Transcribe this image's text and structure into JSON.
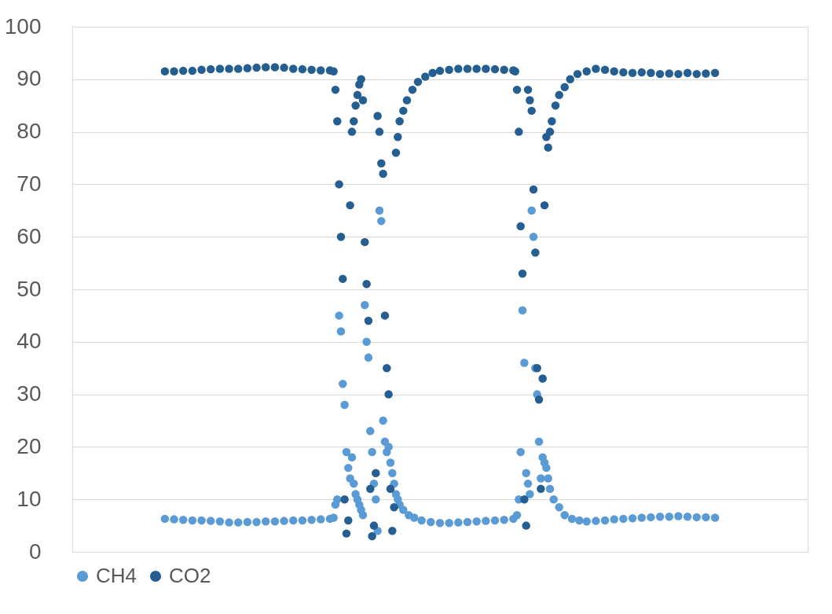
{
  "chart_data": {
    "type": "scatter",
    "categories": [
      null,
      null,
      null,
      null,
      null,
      null,
      null,
      null,
      null,
      null,
      null,
      null,
      null,
      null,
      null,
      null,
      null,
      null,
      null,
      null,
      null,
      null,
      null,
      null,
      null,
      null,
      null,
      null,
      null,
      null,
      null,
      null,
      null,
      null,
      null,
      null,
      null,
      null,
      null,
      null,
      null,
      null,
      null,
      null,
      null,
      null,
      null,
      null,
      null,
      null,
      null,
      null,
      null,
      null,
      null,
      null,
      null,
      null,
      null,
      null,
      null,
      null,
      null,
      null,
      null,
      null,
      null,
      null,
      null,
      null,
      null,
      null,
      null,
      null,
      null,
      null,
      null,
      null,
      null,
      null,
      null,
      null,
      null,
      null,
      null,
      null,
      null,
      null,
      null,
      null,
      null,
      null,
      null,
      null,
      null,
      null,
      null,
      null,
      null,
      null,
      null,
      null,
      null,
      null,
      null,
      null,
      null,
      null,
      null,
      null,
      null,
      null,
      null,
      null,
      null,
      null,
      null,
      null,
      null,
      null,
      null,
      null,
      null,
      null,
      null,
      null,
      null,
      null,
      null,
      null,
      null,
      null,
      null,
      null,
      null,
      null,
      null,
      null,
      null,
      null,
      null,
      null,
      null,
      null,
      null,
      null,
      null,
      null,
      null,
      null,
      null,
      null,
      null,
      null,
      null,
      null,
      null,
      null,
      null,
      null,
      null,
      null,
      null,
      null,
      null,
      null,
      null,
      null,
      null,
      null,
      null,
      null,
      null,
      null,
      null,
      null,
      null,
      null,
      null,
      null,
      null,
      null,
      null,
      null,
      null,
      null,
      null,
      null,
      null,
      null,
      null,
      null,
      null,
      null,
      null,
      null,
      null,
      null,
      null,
      null,
      null,
      null,
      null,
      null,
      null,
      null,
      null,
      null,
      null,
      null,
      null,
      null,
      null,
      null,
      null,
      null,
      null,
      null,
      null,
      null,
      null,
      null,
      null,
      null,
      null,
      null,
      null,
      null,
      null,
      null,
      null,
      null,
      null,
      null,
      null,
      null,
      null,
      null,
      null,
      null,
      null,
      null,
      null,
      null,
      null,
      null,
      null,
      null,
      null,
      null,
      null,
      null,
      null,
      null,
      null,
      null,
      null,
      null,
      null,
      null,
      null,
      null,
      null,
      null,
      null,
      null,
      null,
      null,
      null,
      null,
      null,
      null,
      null,
      null,
      null,
      null,
      null,
      null,
      null,
      null,
      null,
      null,
      null,
      null,
      null,
      null,
      null,
      null,
      null,
      null,
      null,
      null,
      null,
      null,
      null,
      null,
      null,
      null,
      null,
      null,
      null,
      null,
      null,
      null,
      null,
      null,
      null,
      null,
      null,
      null,
      null,
      null,
      null,
      null,
      null,
      null,
      null,
      null,
      null,
      null,
      null,
      null,
      null,
      null,
      null,
      null,
      null,
      null,
      null,
      null,
      null,
      null,
      null,
      null,
      null,
      null,
      null,
      null,
      null,
      null,
      null,
      null,
      null,
      null,
      null,
      null,
      null,
      null,
      null,
      null,
      null,
      null,
      null,
      null,
      null,
      null,
      null,
      null,
      null,
      null,
      null,
      null,
      null,
      null,
      null,
      null,
      null,
      null,
      null,
      null,
      null,
      null,
      null,
      null,
      null,
      null,
      null,
      null,
      null,
      null,
      null,
      null,
      null,
      null,
      null,
      null,
      null,
      null,
      null,
      null,
      null,
      null,
      null,
      null,
      null,
      null,
      null,
      null,
      null,
      null,
      null
    ],
    "ylim": [
      0,
      100
    ],
    "yticks": [
      0,
      10,
      20,
      30,
      40,
      50,
      60,
      70,
      80,
      90,
      100
    ],
    "grid": "y",
    "legend": "bottom",
    "marker": "circle",
    "series": [
      {
        "name": "CH4",
        "color": "#5b9bd5",
        "values": [
          null,
          null,
          null,
          null,
          null,
          null,
          null,
          null,
          null,
          null,
          null,
          null,
          null,
          null,
          null,
          null,
          null,
          null,
          null,
          null,
          null,
          null,
          null,
          null,
          null,
          null,
          null,
          null,
          null,
          null,
          null,
          null,
          null,
          null,
          null,
          null,
          null,
          null,
          null,
          null,
          null,
          null,
          null,
          null,
          null,
          null,
          null,
          null,
          null,
          null,
          6.3,
          null,
          null,
          null,
          null,
          6.2,
          null,
          null,
          null,
          null,
          6.1,
          null,
          null,
          null,
          null,
          6,
          null,
          null,
          null,
          null,
          6,
          null,
          null,
          null,
          null,
          5.9,
          null,
          null,
          null,
          null,
          5.8,
          null,
          null,
          null,
          null,
          5.6,
          null,
          null,
          null,
          null,
          5.6,
          null,
          null,
          null,
          null,
          5.7,
          null,
          null,
          null,
          null,
          5.7,
          null,
          null,
          null,
          null,
          5.8,
          null,
          null,
          null,
          null,
          5.8,
          null,
          null,
          null,
          null,
          5.9,
          null,
          null,
          null,
          null,
          6,
          null,
          null,
          null,
          null,
          6,
          null,
          null,
          null,
          null,
          6.1,
          null,
          null,
          null,
          null,
          6.2,
          null,
          null,
          null,
          null,
          6.3,
          null,
          6.5,
          9,
          10,
          45,
          42,
          32,
          28,
          19,
          16,
          14,
          18,
          13,
          11,
          10,
          9,
          8,
          7,
          47,
          40,
          37,
          23,
          19,
          13,
          10,
          4,
          65,
          63,
          25,
          21,
          19,
          20,
          17,
          15,
          13,
          11,
          10,
          9,
          null,
          8,
          null,
          null,
          7,
          null,
          null,
          6.5,
          null,
          null,
          null,
          6,
          null,
          null,
          null,
          null,
          5.7,
          null,
          null,
          null,
          null,
          5.5,
          null,
          null,
          null,
          null,
          5.5,
          null,
          null,
          null,
          null,
          5.6,
          null,
          null,
          null,
          null,
          5.7,
          null,
          null,
          null,
          null,
          5.8,
          null,
          null,
          null,
          null,
          5.9,
          null,
          null,
          null,
          null,
          6,
          null,
          null,
          null,
          null,
          6.1,
          null,
          null,
          null,
          null,
          6.3,
          null,
          7,
          10,
          19,
          46,
          36,
          15,
          13,
          11,
          65,
          60,
          35,
          30,
          21,
          14,
          18,
          17,
          16,
          14,
          12,
          null,
          10,
          null,
          null,
          8.5,
          null,
          null,
          7,
          null,
          null,
          null,
          6.3,
          null,
          null,
          null,
          6,
          null,
          null,
          null,
          5.8,
          null,
          null,
          null,
          null,
          5.9,
          null,
          null,
          null,
          null,
          6,
          null,
          null,
          null,
          null,
          6.2,
          null,
          null,
          null,
          null,
          6.3,
          null,
          null,
          null,
          null,
          6.4,
          null,
          null,
          null,
          null,
          6.5,
          null,
          null,
          null,
          null,
          6.6,
          null,
          null,
          null,
          null,
          6.7,
          null,
          null,
          null,
          null,
          6.7,
          null,
          null,
          null,
          null,
          6.8,
          null,
          null,
          null,
          null,
          6.7,
          null,
          null,
          null,
          null,
          6.6,
          null,
          null,
          null,
          null,
          6.6,
          null,
          null,
          null,
          null,
          6.5,
          null,
          null,
          null,
          null,
          null,
          null,
          null,
          null,
          null,
          null,
          null,
          null,
          null,
          null,
          null,
          null,
          null,
          null,
          null,
          null,
          null,
          null,
          null,
          null,
          null,
          null,
          null,
          null,
          null,
          null,
          null,
          null,
          null,
          null,
          null,
          null,
          null,
          null,
          null,
          null,
          null,
          null,
          null,
          null,
          null,
          null,
          null,
          null,
          null,
          null
        ]
      },
      {
        "name": "CO2",
        "color": "#255e91",
        "values": [
          null,
          null,
          null,
          null,
          null,
          null,
          null,
          null,
          null,
          null,
          null,
          null,
          null,
          null,
          null,
          null,
          null,
          null,
          null,
          null,
          null,
          null,
          null,
          null,
          null,
          null,
          null,
          null,
          null,
          null,
          null,
          null,
          null,
          null,
          null,
          null,
          null,
          null,
          null,
          null,
          null,
          null,
          null,
          null,
          null,
          null,
          null,
          null,
          null,
          null,
          91.5,
          null,
          null,
          null,
          null,
          91.5,
          null,
          null,
          null,
          null,
          91.6,
          null,
          null,
          null,
          null,
          91.6,
          null,
          null,
          null,
          null,
          91.8,
          null,
          null,
          null,
          null,
          91.9,
          null,
          null,
          null,
          null,
          92,
          null,
          null,
          null,
          null,
          92,
          null,
          null,
          null,
          null,
          92,
          null,
          null,
          null,
          null,
          92.1,
          null,
          null,
          null,
          null,
          92.2,
          null,
          null,
          null,
          null,
          92.3,
          null,
          null,
          null,
          null,
          92.3,
          null,
          null,
          null,
          null,
          92.2,
          null,
          null,
          null,
          null,
          92,
          null,
          null,
          null,
          null,
          91.9,
          null,
          null,
          null,
          null,
          91.8,
          null,
          null,
          null,
          null,
          91.7,
          null,
          null,
          null,
          null,
          91.7,
          null,
          91.5,
          88,
          82,
          70,
          60,
          52,
          10,
          3.5,
          6,
          66,
          80,
          82,
          85,
          87,
          89,
          90,
          86,
          59,
          51,
          44,
          12,
          3,
          5,
          15,
          83,
          80,
          74,
          72,
          45,
          35,
          30,
          12,
          4,
          8.5,
          76,
          79,
          82,
          null,
          84,
          null,
          86,
          null,
          null,
          88,
          null,
          null,
          89.5,
          null,
          null,
          null,
          90.5,
          null,
          null,
          null,
          91.2,
          null,
          null,
          null,
          91.6,
          null,
          null,
          null,
          null,
          91.8,
          null,
          null,
          null,
          null,
          92,
          null,
          null,
          null,
          null,
          92,
          null,
          null,
          null,
          null,
          92,
          null,
          null,
          null,
          null,
          92,
          null,
          null,
          null,
          null,
          91.9,
          null,
          null,
          null,
          null,
          91.8,
          null,
          null,
          null,
          null,
          91.7,
          91.5,
          88,
          80,
          62,
          53,
          10,
          5,
          88,
          86,
          84,
          69,
          57,
          35,
          29,
          12,
          33,
          66,
          79,
          77,
          80,
          82,
          null,
          85,
          null,
          87,
          null,
          null,
          88.5,
          null,
          null,
          90,
          null,
          null,
          null,
          91,
          null,
          null,
          null,
          null,
          91.5,
          null,
          null,
          null,
          null,
          92,
          null,
          null,
          null,
          null,
          91.8,
          null,
          null,
          null,
          null,
          91.5,
          null,
          null,
          null,
          null,
          91.3,
          null,
          null,
          null,
          null,
          91.2,
          null,
          null,
          null,
          null,
          91.3,
          null,
          null,
          null,
          null,
          91.2,
          null,
          null,
          null,
          null,
          91,
          null,
          null,
          null,
          null,
          91.1,
          null,
          null,
          null,
          null,
          91,
          null,
          null,
          null,
          null,
          91.2,
          null,
          null,
          null,
          null,
          91,
          null,
          null,
          null,
          null,
          91.1,
          null,
          null,
          null,
          null,
          91.2,
          null,
          null,
          null,
          null,
          null,
          null,
          null,
          null,
          null,
          null,
          null,
          null,
          null,
          null,
          null,
          null,
          null,
          null,
          null,
          null,
          null,
          null,
          null,
          null,
          null,
          null,
          null,
          null,
          null,
          null,
          null,
          null,
          null,
          null,
          null,
          null,
          null,
          null,
          null,
          null,
          null,
          null,
          null,
          null,
          null,
          null,
          null,
          null,
          null,
          null
        ]
      }
    ]
  }
}
